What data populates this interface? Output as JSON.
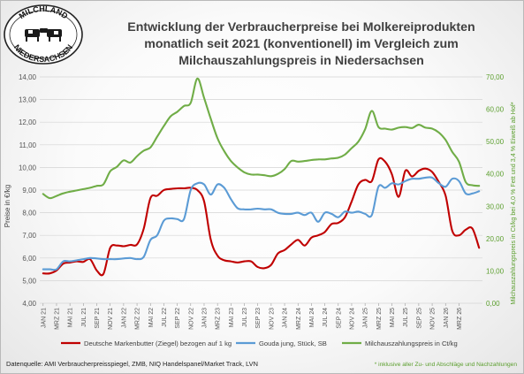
{
  "chart_data": {
    "type": "line",
    "title": "Entwicklung der Verbraucherpreise bei Molkereiprodukten monatlich seit 2021 (konventionell) im Vergleich zum Milchauszahlungspreis in Niedersachsen",
    "title_lines": [
      "Entwicklung der Verbraucherpreise bei Molkereiprodukten",
      "monatlich seit 2021 (konventionell) im Vergleich zum",
      "Milchauszahlungspreis in Niedersachsen"
    ],
    "ylabel_left": "Preise in €/kg",
    "ylabel_right": "Milchauszahlungspreis in Ct/kg  bei 4,0 % Fett und 3,4 % Eiweiß ab Hof*",
    "ylim_left": [
      4,
      14
    ],
    "ylim_right": [
      0,
      70
    ],
    "yticks_left": [
      "4,00",
      "5,00",
      "6,00",
      "7,00",
      "8,00",
      "9,00",
      "10,00",
      "11,00",
      "12,00",
      "13,00",
      "14,00"
    ],
    "yticks_right": [
      "0,00",
      "10,00",
      "20,00",
      "30,00",
      "40,00",
      "50,00",
      "60,00",
      "70,00"
    ],
    "x_range": [
      "2021-01",
      "2026-03"
    ],
    "xticks": [
      "JAN 21",
      "MRZ 21",
      "MAI 21",
      "JUL 21",
      "SEP 21",
      "NOV 21",
      "JAN 22",
      "MRZ 22",
      "MAI 22",
      "JUL 22",
      "SEP 22",
      "NOV 22",
      "JAN 23",
      "MRZ 23",
      "MAI 23",
      "JUL 23",
      "SEP 23",
      "NOV 23",
      "JAN 24",
      "MRZ 24",
      "MAI 24",
      "JUL 24",
      "SEP 24",
      "NOV 24",
      "JAN 25",
      "MRZ 25",
      "MAI 25",
      "JUL 25",
      "SEP 25",
      "NOV 25",
      "JAN 26",
      "MRZ 26"
    ],
    "grid": true,
    "legend_position": "bottom",
    "series": [
      {
        "name": "Deutsche Markenbutter (Ziegel) bezogen auf 1 kg",
        "axis": "left",
        "color": "#c00000",
        "values": [
          5.32,
          5.32,
          5.45,
          5.75,
          5.8,
          5.85,
          5.83,
          5.95,
          5.45,
          5.3,
          6.45,
          6.55,
          6.52,
          6.58,
          6.6,
          7.3,
          8.65,
          8.75,
          9.0,
          9.05,
          9.08,
          9.08,
          9.1,
          9.0,
          8.5,
          6.8,
          6.1,
          5.9,
          5.85,
          5.8,
          5.85,
          5.85,
          5.6,
          5.55,
          5.7,
          6.2,
          6.35,
          6.6,
          6.8,
          6.55,
          6.9,
          7.0,
          7.15,
          7.5,
          7.55,
          7.8,
          8.5,
          9.25,
          9.45,
          9.4,
          10.35,
          10.25,
          9.7,
          8.7,
          9.85,
          9.6,
          9.85,
          9.95,
          9.8,
          9.35,
          8.75,
          7.2,
          7.0,
          7.25,
          7.3,
          6.45
        ]
      },
      {
        "name": "Gouda jung, Stück, SB",
        "axis": "left",
        "color": "#5b9bd5",
        "values": [
          5.5,
          5.5,
          5.5,
          5.85,
          5.85,
          5.9,
          5.95,
          6.0,
          5.98,
          5.95,
          5.95,
          5.95,
          5.98,
          6.0,
          5.95,
          6.05,
          6.8,
          7.0,
          7.65,
          7.75,
          7.72,
          7.72,
          9.0,
          9.3,
          9.25,
          8.8,
          9.25,
          9.1,
          8.6,
          8.2,
          8.15,
          8.15,
          8.18,
          8.15,
          8.15,
          8.0,
          7.95,
          7.95,
          8.0,
          7.9,
          8.0,
          7.6,
          8.0,
          7.95,
          7.8,
          8.05,
          8.0,
          8.05,
          7.95,
          7.9,
          9.15,
          9.1,
          9.3,
          9.25,
          9.4,
          9.5,
          9.5,
          9.55,
          9.55,
          9.3,
          9.15,
          9.5,
          9.4,
          8.85,
          8.85,
          8.95
        ]
      },
      {
        "name": "Milchauszahlungspreis in Ct/kg",
        "axis": "right",
        "color": "#70ad47",
        "values": [
          33.8,
          32.5,
          33.2,
          34.0,
          34.5,
          34.9,
          35.3,
          35.7,
          36.3,
          36.8,
          40.8,
          42.2,
          44.2,
          43.5,
          45.5,
          47.2,
          48.2,
          51.5,
          54.8,
          57.8,
          59.2,
          61.0,
          62.0,
          69.5,
          63.5,
          57.0,
          51.0,
          47.0,
          44.0,
          42.0,
          40.5,
          39.8,
          39.8,
          39.6,
          39.3,
          40.0,
          41.5,
          44.0,
          43.8,
          44.0,
          44.3,
          44.5,
          44.5,
          44.8,
          45.0,
          46.0,
          48.0,
          50.0,
          53.8,
          59.5,
          54.5,
          54.0,
          53.7,
          54.3,
          54.5,
          54.2,
          55.2,
          54.3,
          54.0,
          52.8,
          50.5,
          46.8,
          43.8,
          37.5,
          36.5,
          36.3
        ]
      }
    ]
  },
  "logo": {
    "top_text": "MILCHLAND",
    "bottom_text": "NIEDERSACHSEN"
  },
  "footer": {
    "source": "Datenquelle: AMI Verbraucherpreisspiegel, ZMB, NIQ Handelspanel/Market Track, LVN",
    "note": "* inklusive aller Zu- und Abschläge und Nachzahlungen"
  }
}
